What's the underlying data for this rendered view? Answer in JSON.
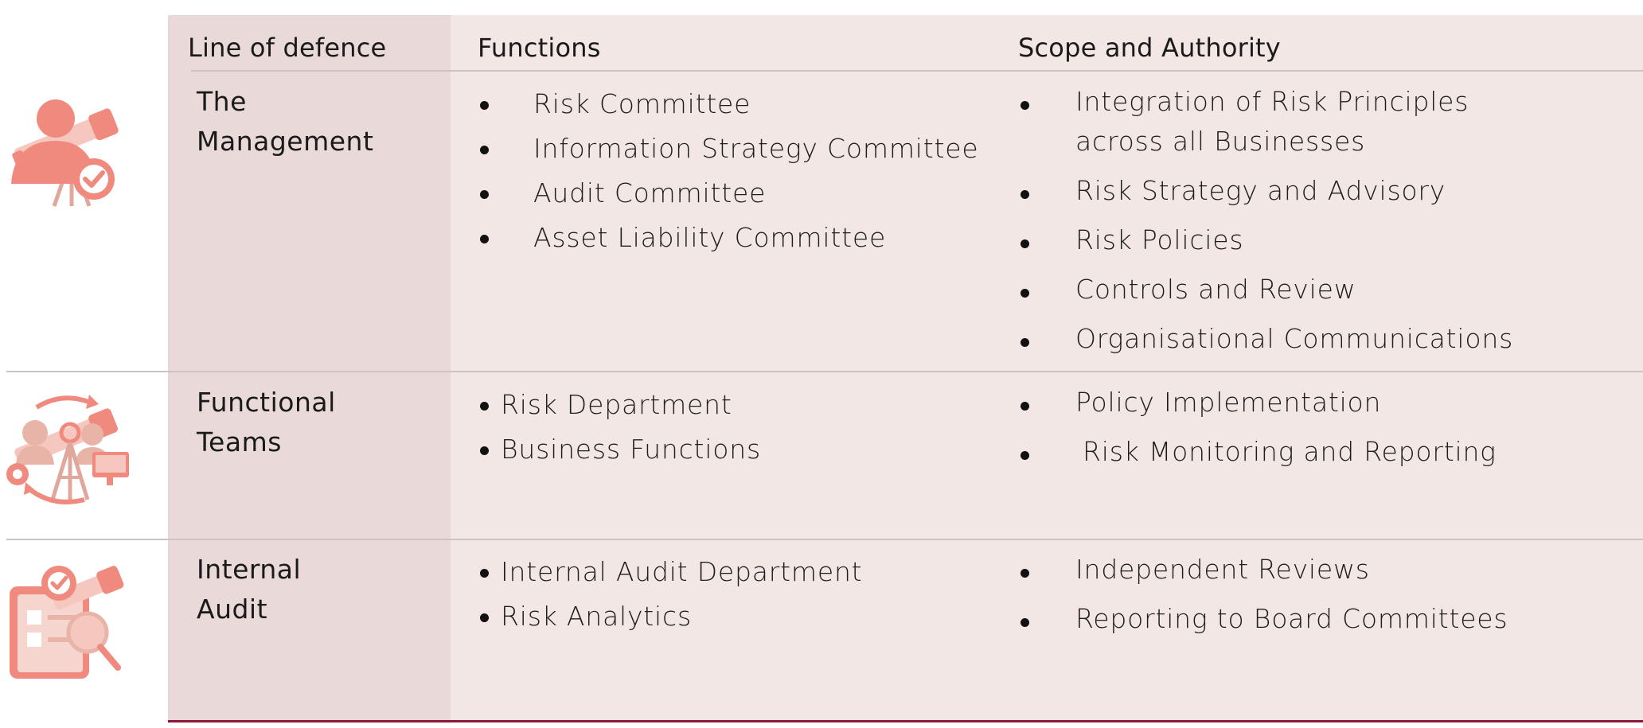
{
  "header": {
    "col1": "Line of defence",
    "col2": "Functions",
    "col3": "Scope and Authority"
  },
  "rows": [
    {
      "line1": "The",
      "line2": "Management",
      "functions": [
        "Risk Committee",
        "Information Strategy Committee",
        "Audit Committee",
        "Asset Liability Committee"
      ],
      "scope": [
        "Integration of Risk Principles across all Businesses",
        "Risk Strategy and Advisory",
        "Risk Policies",
        "Controls and Review",
        "Organisational Communications"
      ]
    },
    {
      "line1": "Functional",
      "line2": "Teams",
      "functions": [
        "Risk Department",
        "Business Functions"
      ],
      "scope": [
        "Policy Implementation",
        "Risk Monitoring and Reporting"
      ]
    },
    {
      "line1": "Internal",
      "line2": "Audit",
      "functions": [
        "Internal Audit Department",
        "Risk Analytics"
      ],
      "scope": [
        "Independent Reviews",
        "Reporting to Board Committees"
      ]
    }
  ],
  "icons": [
    "management-telescope-icon",
    "teams-telescope-icon",
    "audit-telescope-icon"
  ],
  "colors": {
    "first_column_bg": "#ead9d9",
    "column_bg": "#f3e7e6",
    "accent_line": "#8e1b3c",
    "icon_primary": "#f08a7e",
    "icon_light": "#f6c7bf"
  }
}
